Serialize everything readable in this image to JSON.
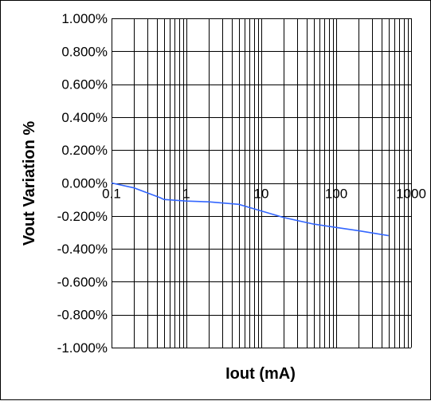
{
  "chart_data": {
    "type": "line",
    "title": "",
    "xlabel": "Iout (mA)",
    "ylabel": "Vout Variation %",
    "x_scale": "log",
    "xlim": [
      0.1,
      1000
    ],
    "ylim": [
      -1.0,
      1.0
    ],
    "x_ticks": [
      0.1,
      1,
      10,
      100,
      1000
    ],
    "x_tick_labels": [
      "0.1",
      "1",
      "10",
      "100",
      "1000"
    ],
    "y_ticks": [
      1.0,
      0.8,
      0.6,
      0.4,
      0.2,
      0.0,
      -0.2,
      -0.4,
      -0.6,
      -0.8,
      -1.0
    ],
    "y_tick_labels": [
      "1.000%",
      "0.800%",
      "0.600%",
      "0.400%",
      "0.200%",
      "0.000%",
      "-0.200%",
      "-0.400%",
      "-0.600%",
      "-0.800%",
      "-1.000%"
    ],
    "grid": true,
    "legend": "none",
    "colors": {
      "line": "#3366ff",
      "grid": "#000000"
    },
    "series": [
      {
        "x": [
          0.1,
          0.2,
          0.3,
          0.45,
          0.5,
          1,
          2,
          5,
          10,
          20,
          50,
          100,
          200,
          500
        ],
        "y": [
          0.0,
          -0.03,
          -0.06,
          -0.09,
          -0.1,
          -0.11,
          -0.115,
          -0.13,
          -0.17,
          -0.21,
          -0.25,
          -0.27,
          -0.29,
          -0.32
        ]
      }
    ]
  }
}
